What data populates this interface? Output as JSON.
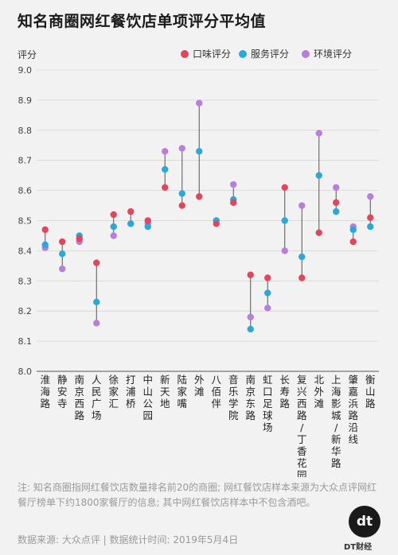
{
  "title": "知名商圈网红餐饮店单项评分平均值",
  "note": "注: 知名商圈指网红餐饮店数量排名前20的商圈; 网红餐饮店样本来源为大众点评网红餐厅榜单下约1800家餐厅的信息; 其中网红餐饮店样本中不包含酒吧。",
  "source": "数据来源: 大众点评 | 数据统计时间: 2019年5月4日",
  "brand": {
    "logo": "dt",
    "label": "DT财经"
  },
  "colors": {
    "taste": "#e0465c",
    "service": "#2aa9d9",
    "environment": "#b77fd9",
    "connector": "#555555",
    "grid": "#d6d6d6"
  },
  "chart_data": {
    "type": "dot-range",
    "ylabel": "评分",
    "ylim": [
      8.0,
      9.0
    ],
    "yticks": [
      "8.0",
      "8.1",
      "8.2",
      "8.3",
      "8.4",
      "8.5",
      "8.6",
      "8.7",
      "8.8",
      "8.9",
      "9.0"
    ],
    "legend_position": "top-right",
    "categories": [
      "淮海路",
      "静安寺",
      "南京西路",
      "人民广场",
      "徐家汇",
      "打浦桥",
      "中山公园",
      "新天地",
      "陆家嘴",
      "外滩",
      "八佰伴",
      "音乐学院",
      "南京东路",
      "虹口足球场",
      "长寿路",
      "复兴西路/丁香花园",
      "北外滩",
      "上海影城/新华路",
      "肇嘉浜路沿线",
      "衡山路"
    ],
    "series": [
      {
        "name": "口味评分",
        "key": "taste",
        "values": [
          8.47,
          8.43,
          8.44,
          8.36,
          8.52,
          8.53,
          8.5,
          8.61,
          8.55,
          8.58,
          8.49,
          8.56,
          8.32,
          8.31,
          8.61,
          8.31,
          8.46,
          8.56,
          8.43,
          8.51
        ]
      },
      {
        "name": "服务评分",
        "key": "service",
        "values": [
          8.42,
          8.39,
          8.45,
          8.23,
          8.48,
          8.49,
          8.48,
          8.67,
          8.59,
          8.73,
          8.5,
          8.57,
          8.14,
          8.26,
          8.5,
          8.38,
          8.65,
          8.53,
          8.47,
          8.48
        ]
      },
      {
        "name": "环境评分",
        "key": "environment",
        "values": [
          8.41,
          8.34,
          8.43,
          8.16,
          8.45,
          8.49,
          8.49,
          8.73,
          8.74,
          8.89,
          8.5,
          8.62,
          8.18,
          8.21,
          8.4,
          8.55,
          8.79,
          8.61,
          8.48,
          8.58
        ]
      }
    ]
  }
}
